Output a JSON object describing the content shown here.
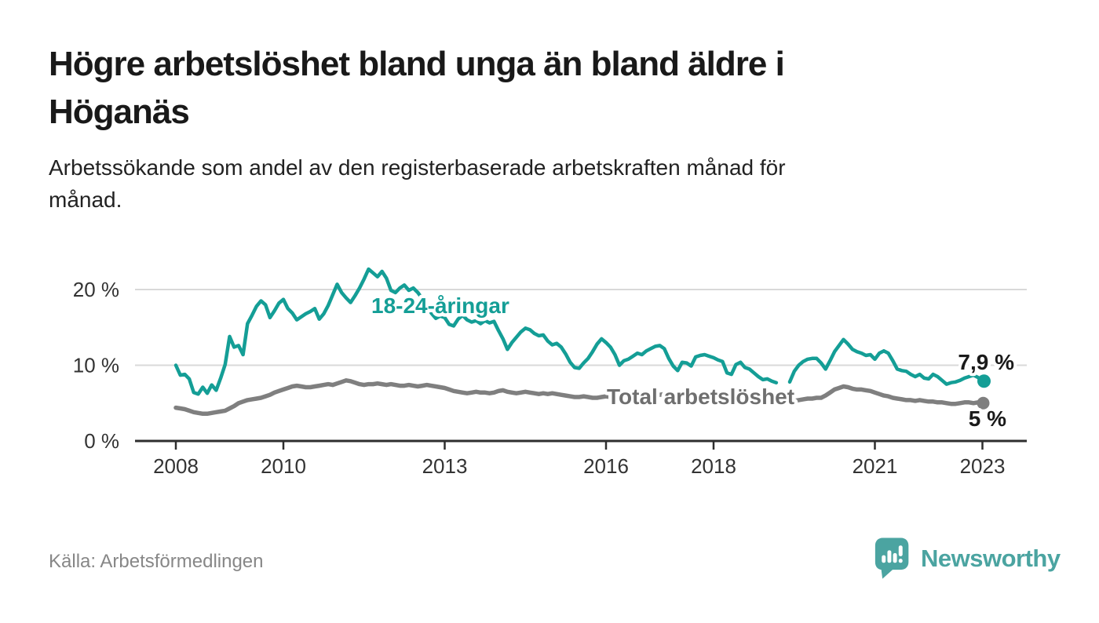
{
  "header": {
    "title_lines": [
      "Högre arbetslöshet bland unga än bland äldre i",
      "Höganäs"
    ],
    "subtitle_lines": [
      "Arbetssökande som andel av den registerbaserade arbetskraften månad för",
      "månad."
    ]
  },
  "footer": {
    "source": "Källa: Arbetsförmedlingen",
    "brand": "Newsworthy",
    "logo_icon": "speech-bubble-bar-chart-icon",
    "brand_color": "#4ba4a1"
  },
  "chart_data": {
    "type": "line",
    "x_unit": "month",
    "x_start_year": 2008,
    "x_end_year": 2023,
    "x_ticks": [
      2008,
      2010,
      2013,
      2016,
      2018,
      2021,
      2023
    ],
    "y_ticks": [
      {
        "value": 0,
        "label": "0 %"
      },
      {
        "value": 10,
        "label": "10 %"
      },
      {
        "value": 20,
        "label": "20 %"
      }
    ],
    "ylim": [
      0,
      24
    ],
    "grid": "horizontal",
    "legend_position": "inline-labels",
    "style": {
      "grid_color": "#d9d9d9",
      "axis_color": "#2e2e2e",
      "tick_label_color": "#333333",
      "end_label_color": "#1a1a1a"
    },
    "series": [
      {
        "name": "Total arbetslöshet",
        "color": "#7f7f7f",
        "label_color": "#6f6f6f",
        "end_label": "5 %",
        "end_value": 5.0,
        "values": [
          4.4,
          4.3,
          4.2,
          4.0,
          3.8,
          3.7,
          3.6,
          3.6,
          3.7,
          3.8,
          3.9,
          4.0,
          4.3,
          4.6,
          5.0,
          5.2,
          5.4,
          5.5,
          5.6,
          5.7,
          5.9,
          6.1,
          6.4,
          6.6,
          6.8,
          7.0,
          7.2,
          7.3,
          7.2,
          7.1,
          7.1,
          7.2,
          7.3,
          7.4,
          7.5,
          7.4,
          7.6,
          7.8,
          8.0,
          7.9,
          7.7,
          7.5,
          7.4,
          7.5,
          7.5,
          7.6,
          7.5,
          7.4,
          7.5,
          7.4,
          7.3,
          7.3,
          7.4,
          7.3,
          7.2,
          7.3,
          7.4,
          7.3,
          7.2,
          7.1,
          7.0,
          6.8,
          6.6,
          6.5,
          6.4,
          6.3,
          6.4,
          6.5,
          6.4,
          6.4,
          6.3,
          6.4,
          6.6,
          6.7,
          6.5,
          6.4,
          6.3,
          6.4,
          6.5,
          6.4,
          6.3,
          6.2,
          6.3,
          6.2,
          6.3,
          6.2,
          6.1,
          6.0,
          5.9,
          5.8,
          5.8,
          5.9,
          5.8,
          5.7,
          5.7,
          5.8,
          5.9,
          5.8,
          5.7,
          5.8,
          5.9,
          6.0,
          6.0,
          6.1,
          6.0,
          5.9,
          6.0,
          6.1,
          6.1,
          6.2,
          6.1,
          6.0,
          5.9,
          6.0,
          6.1,
          6.0,
          5.9,
          5.9,
          5.8,
          5.9,
          5.9,
          5.8,
          5.7,
          5.7,
          5.6,
          5.5,
          5.5,
          5.4,
          5.4,
          5.3,
          5.3,
          5.4,
          5.4,
          5.3,
          5.3,
          5.2,
          5.2,
          5.3,
          5.3,
          5.4,
          5.5,
          5.6,
          5.6,
          5.7,
          5.7,
          6.0,
          6.4,
          6.8,
          7.0,
          7.2,
          7.1,
          6.9,
          6.8,
          6.8,
          6.7,
          6.6,
          6.4,
          6.2,
          6.0,
          5.9,
          5.7,
          5.6,
          5.5,
          5.4,
          5.4,
          5.3,
          5.4,
          5.3,
          5.2,
          5.2,
          5.1,
          5.1,
          5.0,
          4.9,
          4.9,
          5.0,
          5.1,
          5.1,
          5.0,
          5.1,
          5.0
        ]
      },
      {
        "name": "18-24-åringar",
        "color": "#149e96",
        "label_color": "#149e96",
        "end_label": "7,9 %",
        "end_value": 7.9,
        "values": [
          10.0,
          8.7,
          8.8,
          8.2,
          6.4,
          6.2,
          7.1,
          6.3,
          7.4,
          6.7,
          8.3,
          10.1,
          13.8,
          12.4,
          12.6,
          11.4,
          15.5,
          16.6,
          17.8,
          18.5,
          18.0,
          16.3,
          17.2,
          18.2,
          18.7,
          17.5,
          16.9,
          16.0,
          16.4,
          16.8,
          17.1,
          17.5,
          16.1,
          16.8,
          17.9,
          19.3,
          20.7,
          19.6,
          18.9,
          18.3,
          19.2,
          20.2,
          21.4,
          22.7,
          22.2,
          21.7,
          22.4,
          21.5,
          19.9,
          19.6,
          20.2,
          20.6,
          19.9,
          20.2,
          19.6,
          18.8,
          17.9,
          16.9,
          16.2,
          16.5,
          16.3,
          15.4,
          15.2,
          16.1,
          16.6,
          16.0,
          15.7,
          15.9,
          15.5,
          15.9,
          15.6,
          15.8,
          14.6,
          13.5,
          12.1,
          13.0,
          13.7,
          14.4,
          14.9,
          14.7,
          14.2,
          13.9,
          14.0,
          13.2,
          12.7,
          12.9,
          12.4,
          11.5,
          10.4,
          9.7,
          9.6,
          10.3,
          10.9,
          11.8,
          12.8,
          13.5,
          13.0,
          12.4,
          11.4,
          10.0,
          10.6,
          10.8,
          11.2,
          11.6,
          11.4,
          11.9,
          12.2,
          12.5,
          12.6,
          12.2,
          10.9,
          9.9,
          9.3,
          10.4,
          10.3,
          9.9,
          11.1,
          11.3,
          11.4,
          11.2,
          11.0,
          10.7,
          10.5,
          9.0,
          8.8,
          10.1,
          10.4,
          9.7,
          9.5,
          9.0,
          8.5,
          8.1,
          8.2,
          7.9,
          7.7,
          null,
          null,
          7.8,
          9.2,
          10.0,
          10.5,
          10.8,
          10.9,
          10.9,
          10.3,
          9.5,
          10.6,
          11.8,
          12.6,
          13.4,
          12.8,
          12.1,
          11.8,
          11.6,
          11.3,
          11.4,
          10.8,
          11.6,
          11.9,
          11.6,
          10.6,
          9.5,
          9.3,
          9.2,
          8.8,
          8.5,
          8.8,
          8.3,
          8.2,
          8.8,
          8.5,
          8.0,
          7.5,
          7.7,
          7.8,
          8.0,
          8.3,
          8.5,
          8.7,
          8.4,
          7.9
        ]
      }
    ]
  }
}
